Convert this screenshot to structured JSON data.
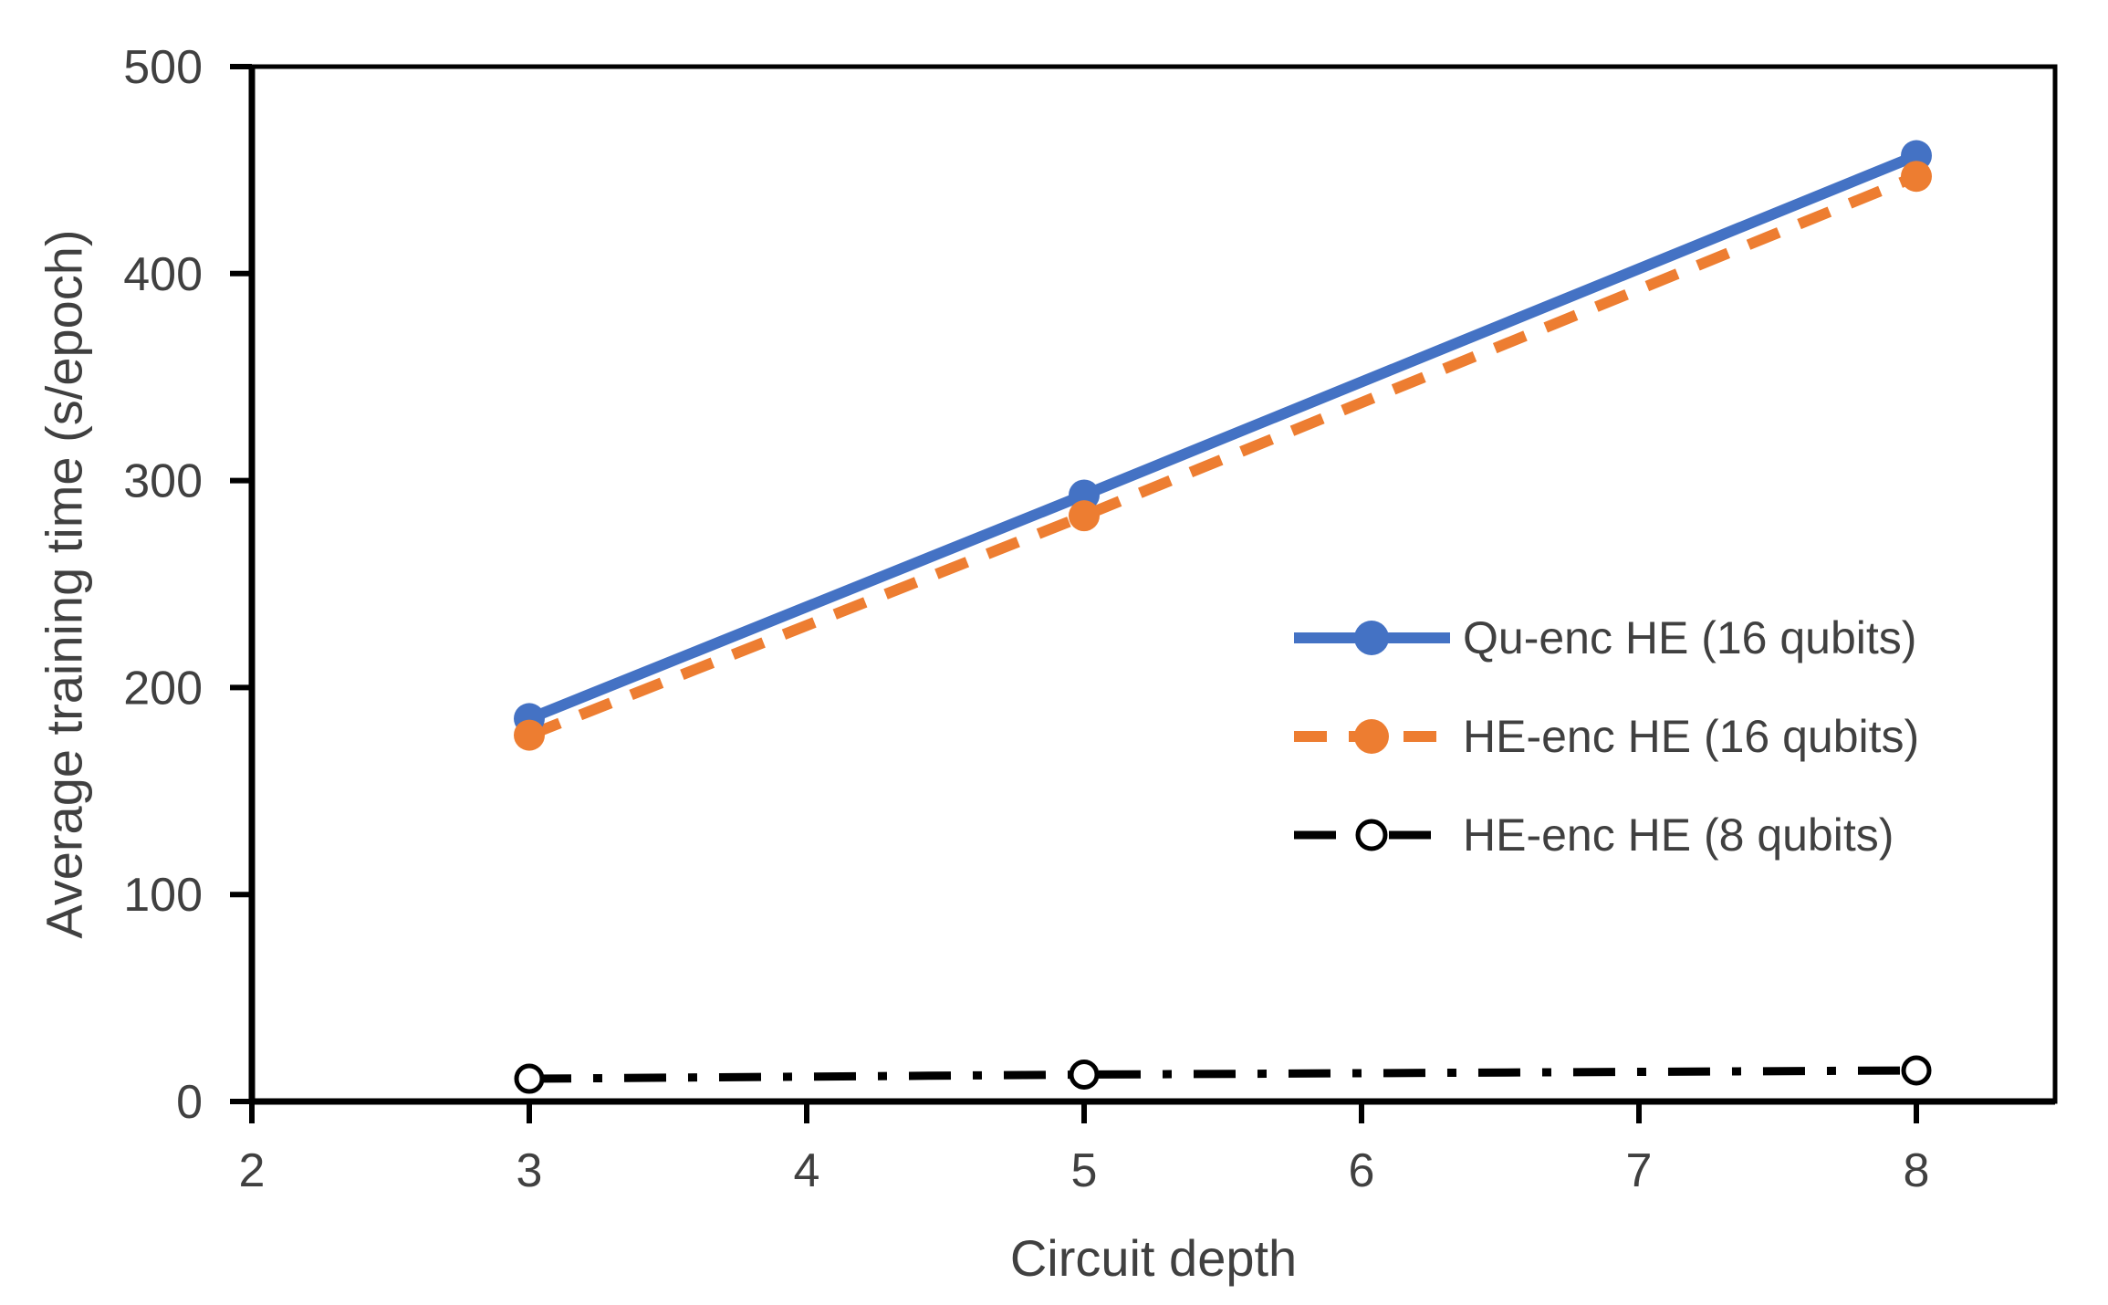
{
  "figure": {
    "background": "#ffffff",
    "text_color": "#404040",
    "axis_color": "#000000"
  },
  "chart_data": {
    "type": "line",
    "title": "",
    "xlabel": "Circuit depth",
    "ylabel": "Average training time (s/epoch)",
    "xlim": [
      2,
      8.5
    ],
    "ylim": [
      0,
      500
    ],
    "xticks": [
      2,
      3,
      4,
      5,
      6,
      7,
      8
    ],
    "yticks": [
      0,
      100,
      200,
      300,
      400,
      500
    ],
    "grid": false,
    "legend_position": "inside-right",
    "x": [
      3,
      5,
      8
    ],
    "series": [
      {
        "name": "Qu-enc HE (16 qubits)",
        "values": [
          185,
          293,
          457
        ],
        "color": "#4472C4",
        "line_style": "solid",
        "marker": "filled-circle"
      },
      {
        "name": "HE-enc HE (16 qubits)",
        "values": [
          177,
          283,
          447
        ],
        "color": "#ED7D31",
        "line_style": "dashed",
        "marker": "filled-circle"
      },
      {
        "name": "HE-enc HE (8 qubits)",
        "values": [
          11,
          13,
          15
        ],
        "color": "#000000",
        "line_style": "dash-dot",
        "marker": "open-circle"
      }
    ]
  }
}
